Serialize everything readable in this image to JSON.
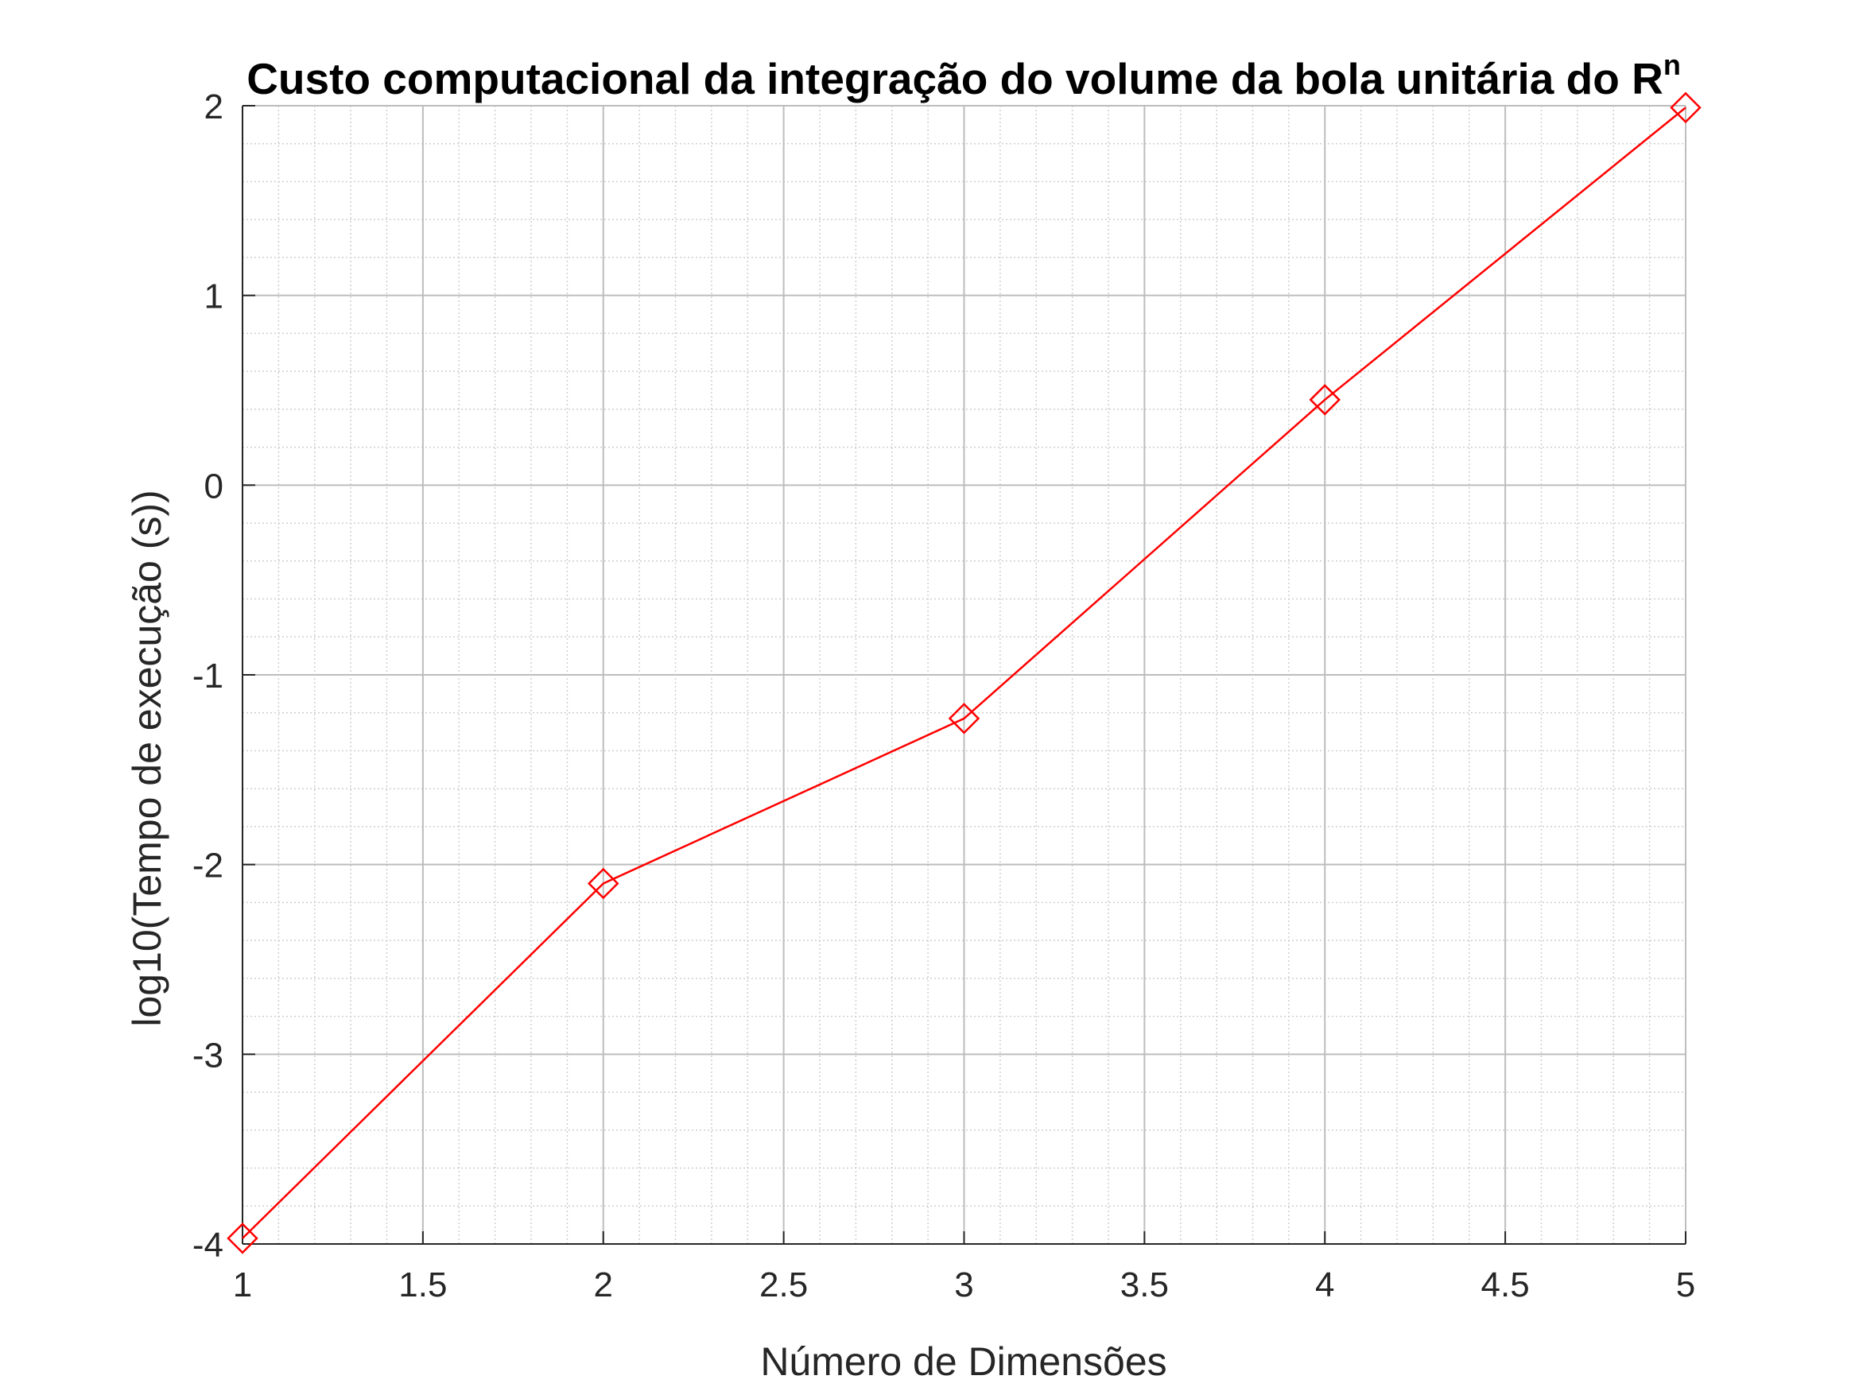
{
  "chart_data": {
    "type": "line",
    "title": "Custo computacional da integração do volume da bola unitária do R",
    "title_superscript": "n",
    "xlabel": "Número de Dimensões",
    "ylabel": "log10(Tempo de execução (s))",
    "xlim": [
      1,
      5
    ],
    "ylim": [
      -4,
      2
    ],
    "xticks": [
      "1",
      "1.5",
      "2",
      "2.5",
      "3",
      "3.5",
      "4",
      "4.5",
      "5"
    ],
    "yticks": [
      "-4",
      "-3",
      "-2",
      "-1",
      "0",
      "1",
      "2"
    ],
    "grid": true,
    "minor_grid": true,
    "legend": "none",
    "series": [
      {
        "x": [
          1,
          2,
          3,
          4,
          5
        ],
        "y": [
          -3.97,
          -2.1,
          -1.23,
          0.45,
          1.99
        ],
        "color": "#ff0000",
        "marker": "diamond"
      }
    ]
  }
}
